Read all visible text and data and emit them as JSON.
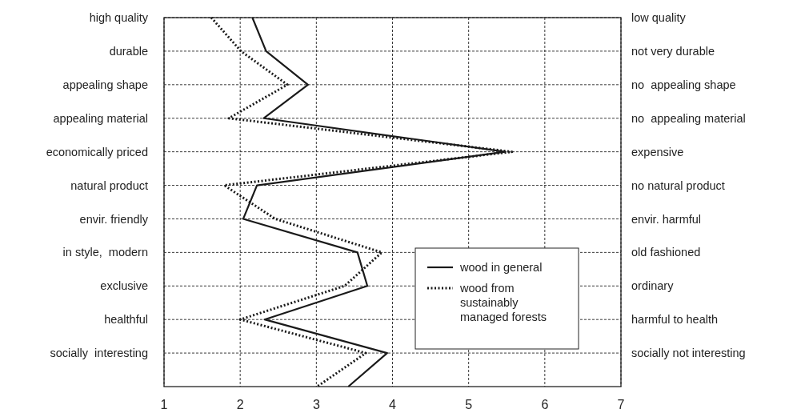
{
  "chart_data": {
    "type": "line",
    "orientation": "horizontal",
    "categories": [
      "high quality",
      "durable",
      "appealing shape",
      "appealing material",
      "economically priced",
      "natural product",
      "envir. friendly",
      "in style,  modern",
      "exclusive",
      "healthful",
      "socially  interesting",
      null
    ],
    "y2_categories": [
      "low quality",
      "not very durable",
      "no  appealing shape",
      "no  appealing material",
      "expensive",
      "no natural product",
      "envir. harmful",
      "old fashioned",
      "ordinary",
      "harmful to health",
      "socially not interesting",
      null
    ],
    "xlim": [
      1,
      7
    ],
    "xticks": [
      1,
      2,
      3,
      4,
      5,
      6,
      7
    ],
    "grid": true,
    "legend": "bottom right",
    "series": [
      {
        "name": "wood in general",
        "color": "#1a1a1a",
        "line_style": "solid",
        "values": [
          2.16,
          2.34,
          2.89,
          2.31,
          5.48,
          2.22,
          2.04,
          3.54,
          3.67,
          2.32,
          3.93,
          3.42
        ]
      },
      {
        "name": "wood from sustainably managed forests",
        "color": "#1a1a1a",
        "line_style": "dotted",
        "values": [
          1.62,
          2.01,
          2.62,
          1.85,
          5.57,
          1.79,
          2.46,
          3.86,
          3.37,
          2.0,
          3.65,
          3.01
        ]
      }
    ]
  }
}
